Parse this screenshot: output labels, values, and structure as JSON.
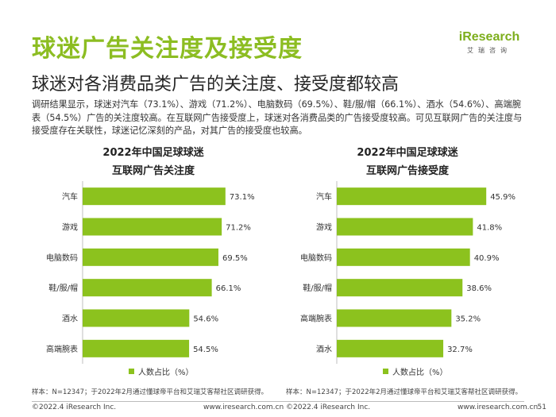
{
  "header": {
    "title": "球迷广告关注度及接受度",
    "subtitle": "球迷对各消费品类广告的关注度、接受度都较高",
    "logo_text": "iResearch",
    "logo_cn": "艾瑞咨询"
  },
  "intro": "调研结果显示，球迷对汽车（73.1%）、游戏（71.2%）、电脑数码（69.5%）、鞋/服/帽（66.1%）、酒水（54.6%）、高端腕表（54.5%）广告的关注度较高。在互联网广告接受度上，球迷对各消费品类的广告接受度较高。可见互联网广告的关注度与接受度存在关联性，球迷记忆深刻的产品，对其广告的接受度也较高。",
  "colors": {
    "bar": "#8cc21e",
    "title": "#8cbd22"
  },
  "chart_data": [
    {
      "type": "bar",
      "orientation": "horizontal",
      "title_line1": "2022年中国足球球迷",
      "title_line2": "互联网广告关注度",
      "categories": [
        "汽车",
        "游戏",
        "电脑数码",
        "鞋/服/帽",
        "酒水",
        "高端腕表"
      ],
      "values": [
        73.1,
        71.2,
        69.5,
        66.1,
        54.6,
        54.5
      ],
      "labels": [
        "73.1%",
        "71.2%",
        "69.5%",
        "66.1%",
        "54.6%",
        "54.5%"
      ],
      "xlim": [
        0,
        100
      ],
      "legend": "人数占比（%）",
      "legend_position": "bottom",
      "note": "样本：N=12347；于2022年2月通过懂球帝平台和艾瑞艾客帮社区调研获得。"
    },
    {
      "type": "bar",
      "orientation": "horizontal",
      "title_line1": "2022年中国足球球迷",
      "title_line2": "互联网广告接受度",
      "categories": [
        "汽车",
        "游戏",
        "电脑数码",
        "鞋/服/帽",
        "高端腕表",
        "酒水"
      ],
      "values": [
        45.9,
        41.8,
        40.9,
        38.6,
        35.2,
        32.7
      ],
      "labels": [
        "45.9%",
        "41.8%",
        "40.9%",
        "38.6%",
        "35.2%",
        "32.7%"
      ],
      "xlim": [
        0,
        60
      ],
      "legend": "人数占比（%）",
      "legend_position": "bottom",
      "note": "样本：N=12347；于2022年2月通过懂球帝平台和艾瑞艾客帮社区调研获得。"
    }
  ],
  "footer": {
    "copyright": "©2022.4 iResearch Inc.",
    "website": "www.iresearch.com.cn",
    "page": "51"
  }
}
